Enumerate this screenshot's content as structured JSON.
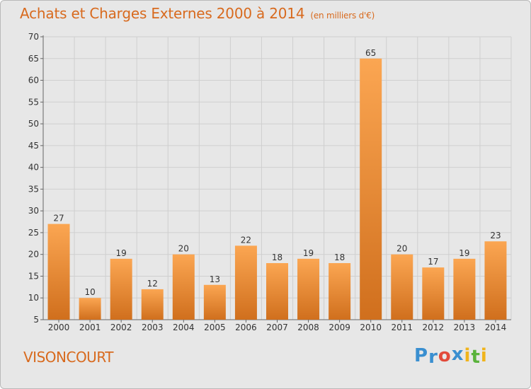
{
  "header": {
    "title": "Achats et Charges Externes 2000 à 2014",
    "subtitle": "(en milliers d'€)"
  },
  "footer": {
    "location": "VISONCOURT",
    "brand_letters": [
      {
        "char": "P",
        "color": "#3a8fd0"
      },
      {
        "char": "r",
        "color": "#3a8fd0"
      },
      {
        "char": "o",
        "color": "#e24a3a"
      },
      {
        "char": "x",
        "color": "#3a8fd0"
      },
      {
        "char": "i",
        "color": "#f0b41c"
      },
      {
        "char": "t",
        "color": "#5ab33c"
      },
      {
        "char": "i",
        "color": "#f0b41c"
      }
    ]
  },
  "colors": {
    "accent": "#d86a1e",
    "bar_light": "#fba652",
    "bar_dark": "#d06f1d",
    "background": "#e7e7e7",
    "grid": "#cfcfcf"
  },
  "chart_data": {
    "type": "bar",
    "categories": [
      "2000",
      "2001",
      "2002",
      "2003",
      "2004",
      "2005",
      "2006",
      "2007",
      "2008",
      "2009",
      "2010",
      "2011",
      "2012",
      "2013",
      "2014"
    ],
    "values": [
      27,
      10,
      19,
      12,
      20,
      13,
      22,
      18,
      19,
      18,
      65,
      20,
      17,
      19,
      23
    ],
    "ylim": [
      5,
      70
    ],
    "yticks": [
      5,
      10,
      15,
      20,
      25,
      30,
      35,
      40,
      45,
      50,
      55,
      60,
      65,
      70
    ],
    "grid": true,
    "legend": "none"
  }
}
